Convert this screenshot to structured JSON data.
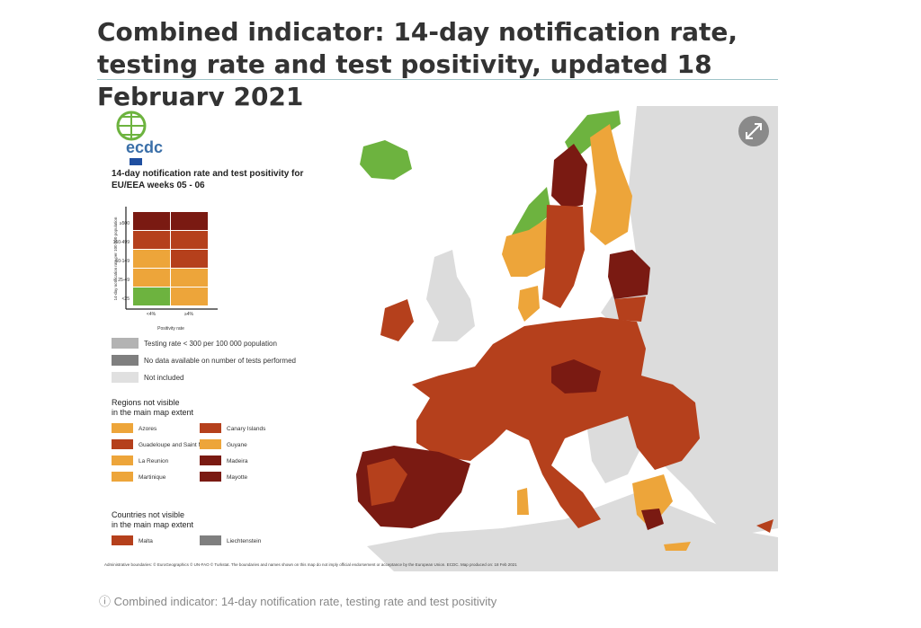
{
  "header": {
    "title": "Combined indicator: 14-day notification rate, testing rate and test positivity, updated 18 February 2021"
  },
  "legend": {
    "logo": "ecdc",
    "title": "14-day notification rate and test positivity for EU/EEA weeks 05 - 06",
    "y_axis_label": "14-day notification rate per 100 000 population",
    "row_labels": [
      "≥500",
      "150-499",
      "50-149",
      "25-49",
      "<25"
    ],
    "x_axis_label": "Positivity rate",
    "column_labels": [
      "<4%",
      "≥4%"
    ],
    "matrix_colors": [
      [
        "#7a1a12",
        "#7a1a12"
      ],
      [
        "#b5401c",
        "#b5401c"
      ],
      [
        "#eda53a",
        "#b5401c"
      ],
      [
        "#eda53a",
        "#eda53a"
      ],
      [
        "#6db33f",
        "#eda53a"
      ]
    ],
    "other": [
      {
        "label": "Testing rate < 300 per 100 000 population",
        "color": "#b3b3b3"
      },
      {
        "label": "No data available on number of tests performed",
        "color": "#7f7f7f"
      },
      {
        "label": "Not included",
        "color": "#e0e0e0"
      }
    ],
    "regions_title": "Regions not visible in the main map extent",
    "regions": [
      {
        "label": "Azores",
        "color": "#eda53a"
      },
      {
        "label": "Canary Islands",
        "color": "#b5401c"
      },
      {
        "label": "Guadeloupe and Saint Martin",
        "color": "#b5401c"
      },
      {
        "label": "Guyane",
        "color": "#eda53a"
      },
      {
        "label": "La Reunion",
        "color": "#eda53a"
      },
      {
        "label": "Madeira",
        "color": "#7a1a12"
      },
      {
        "label": "Martinique",
        "color": "#eda53a"
      },
      {
        "label": "Mayotte",
        "color": "#7a1a12"
      }
    ],
    "countries_title": "Countries not visible in the main map extent",
    "countries": [
      {
        "label": "Malta",
        "color": "#b5401c"
      },
      {
        "label": "Liechtenstein",
        "color": "#7f7f7f"
      }
    ]
  },
  "footer": {
    "credits": "Administrative boundaries: © EuroGeographics © UN-FAO © Turkstat. The boundaries and names shown on this map do not imply official endorsement or acceptance by the European Union. ECDC. Map produced on: 18 Feb 2021"
  },
  "caption": "Combined indicator: 14-day notification rate, testing rate and test positivity"
}
